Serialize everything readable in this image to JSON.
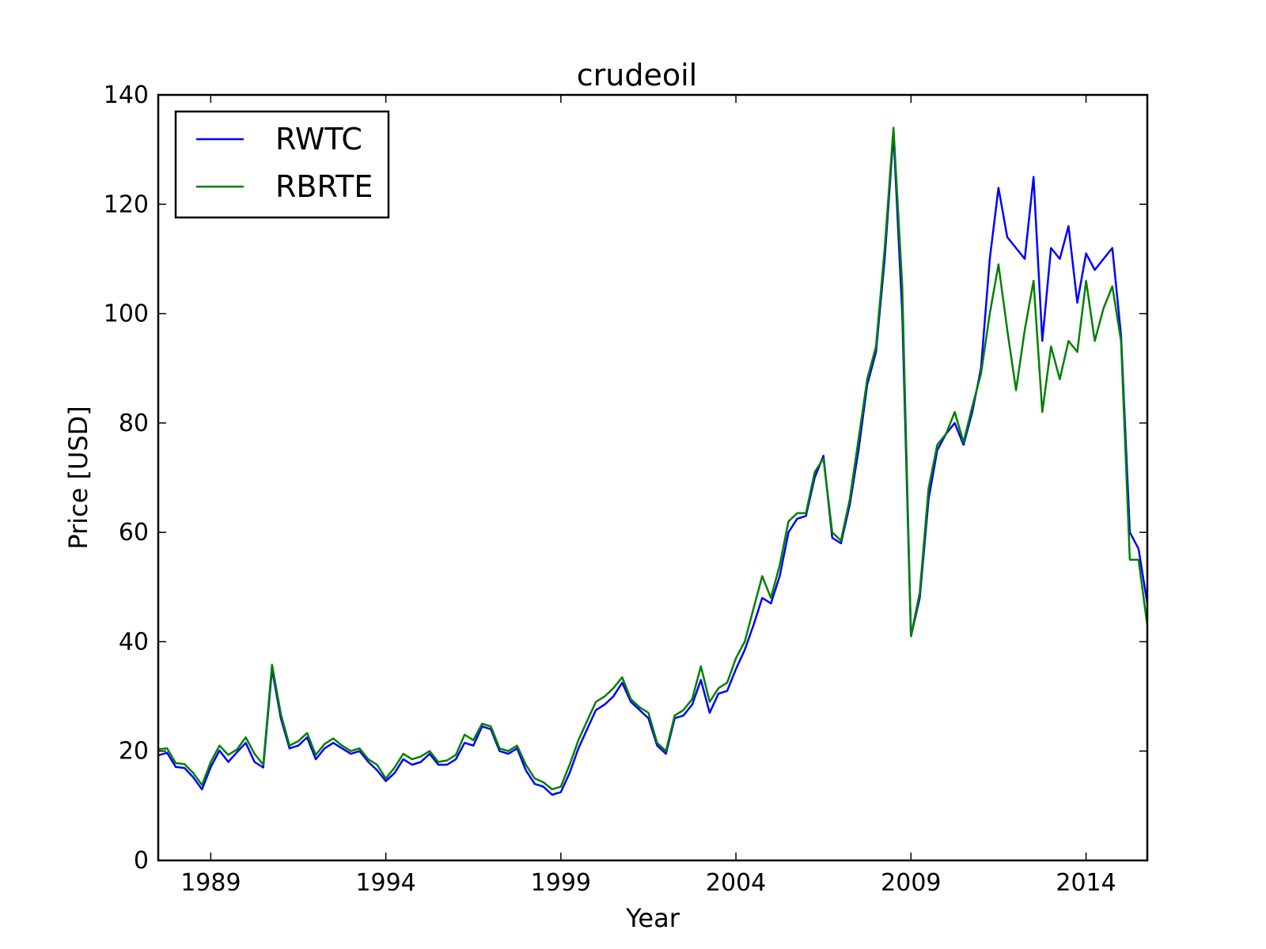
{
  "chart_data": {
    "type": "line",
    "title": "crudeoil",
    "xlabel": "Year",
    "ylabel": "Price [USD]",
    "xlim": [
      1987.5,
      2015.75
    ],
    "ylim": [
      0,
      140
    ],
    "xticks": [
      1989,
      1994,
      1999,
      2004,
      2009,
      2014
    ],
    "yticks": [
      0,
      20,
      40,
      60,
      80,
      100,
      120,
      140
    ],
    "grid": false,
    "legend": "top-left",
    "series": [
      {
        "name": "RWTC",
        "color": "#0000ff",
        "points": [
          [
            1987.5,
            19.2
          ],
          [
            1987.75,
            19.7
          ],
          [
            1988.0,
            17.1
          ],
          [
            1988.25,
            16.9
          ],
          [
            1988.5,
            15.2
          ],
          [
            1988.75,
            13.0
          ],
          [
            1989.0,
            17.1
          ],
          [
            1989.25,
            20.1
          ],
          [
            1989.5,
            18.0
          ],
          [
            1989.75,
            19.8
          ],
          [
            1990.0,
            21.5
          ],
          [
            1990.25,
            18.0
          ],
          [
            1990.5,
            17.0
          ],
          [
            1990.75,
            35.0
          ],
          [
            1991.0,
            26.0
          ],
          [
            1991.25,
            20.5
          ],
          [
            1991.5,
            21.0
          ],
          [
            1991.75,
            22.5
          ],
          [
            1992.0,
            18.5
          ],
          [
            1992.25,
            20.5
          ],
          [
            1992.5,
            21.5
          ],
          [
            1992.75,
            20.5
          ],
          [
            1993.0,
            19.5
          ],
          [
            1993.25,
            20.0
          ],
          [
            1993.5,
            18.0
          ],
          [
            1993.75,
            16.5
          ],
          [
            1994.0,
            14.5
          ],
          [
            1994.25,
            16.0
          ],
          [
            1994.5,
            18.5
          ],
          [
            1994.75,
            17.5
          ],
          [
            1995.0,
            18.0
          ],
          [
            1995.25,
            19.5
          ],
          [
            1995.5,
            17.5
          ],
          [
            1995.75,
            17.5
          ],
          [
            1996.0,
            18.5
          ],
          [
            1996.25,
            21.5
          ],
          [
            1996.5,
            21.0
          ],
          [
            1996.75,
            24.5
          ],
          [
            1997.0,
            24.0
          ],
          [
            1997.25,
            20.0
          ],
          [
            1997.5,
            19.5
          ],
          [
            1997.75,
            20.5
          ],
          [
            1998.0,
            16.5
          ],
          [
            1998.25,
            14.0
          ],
          [
            1998.5,
            13.5
          ],
          [
            1998.75,
            12.0
          ],
          [
            1999.0,
            12.5
          ],
          [
            1999.25,
            16.0
          ],
          [
            1999.5,
            20.5
          ],
          [
            1999.75,
            24.0
          ],
          [
            2000.0,
            27.5
          ],
          [
            2000.25,
            28.5
          ],
          [
            2000.5,
            30.0
          ],
          [
            2000.75,
            32.5
          ],
          [
            2001.0,
            29.0
          ],
          [
            2001.25,
            27.5
          ],
          [
            2001.5,
            26.0
          ],
          [
            2001.75,
            21.0
          ],
          [
            2002.0,
            19.5
          ],
          [
            2002.25,
            26.0
          ],
          [
            2002.5,
            26.5
          ],
          [
            2002.75,
            28.5
          ],
          [
            2003.0,
            33.0
          ],
          [
            2003.25,
            27.0
          ],
          [
            2003.5,
            30.5
          ],
          [
            2003.75,
            31.0
          ],
          [
            2004.0,
            35.0
          ],
          [
            2004.25,
            38.5
          ],
          [
            2004.5,
            43.0
          ],
          [
            2004.75,
            48.0
          ],
          [
            2005.0,
            47.0
          ],
          [
            2005.25,
            52.0
          ],
          [
            2005.5,
            60.0
          ],
          [
            2005.75,
            62.5
          ],
          [
            2006.0,
            63.0
          ],
          [
            2006.25,
            70.0
          ],
          [
            2006.5,
            74.0
          ],
          [
            2006.75,
            59.0
          ],
          [
            2007.0,
            58.0
          ],
          [
            2007.25,
            65.0
          ],
          [
            2007.5,
            75.0
          ],
          [
            2007.75,
            87.0
          ],
          [
            2008.0,
            93.0
          ],
          [
            2008.25,
            110.0
          ],
          [
            2008.5,
            133.0
          ],
          [
            2008.75,
            100.0
          ],
          [
            2009.0,
            41.0
          ],
          [
            2009.25,
            48.0
          ],
          [
            2009.5,
            66.0
          ],
          [
            2009.75,
            75.0
          ],
          [
            2010.0,
            78.0
          ],
          [
            2010.25,
            80.0
          ],
          [
            2010.5,
            76.0
          ],
          [
            2010.75,
            82.0
          ],
          [
            2011.0,
            90.0
          ],
          [
            2011.25,
            110.0
          ],
          [
            2011.5,
            123.0
          ],
          [
            2011.75,
            114.0
          ],
          [
            2012.0,
            112.0
          ],
          [
            2012.25,
            110.0
          ],
          [
            2012.5,
            125.0
          ],
          [
            2012.75,
            95.0
          ],
          [
            2013.0,
            112.0
          ],
          [
            2013.25,
            110.0
          ],
          [
            2013.5,
            116.0
          ],
          [
            2013.75,
            102.0
          ],
          [
            2014.0,
            111.0
          ],
          [
            2014.25,
            108.0
          ],
          [
            2014.5,
            110.0
          ],
          [
            2014.75,
            112.0
          ],
          [
            2015.0,
            96.0
          ],
          [
            2015.25,
            60.0
          ],
          [
            2015.5,
            57.0
          ],
          [
            2015.75,
            47.0
          ]
        ]
      },
      {
        "name": "RBRTE",
        "color": "#008000",
        "points": [
          [
            1987.5,
            20.3
          ],
          [
            1987.75,
            20.5
          ],
          [
            1988.0,
            17.8
          ],
          [
            1988.25,
            17.6
          ],
          [
            1988.5,
            16.0
          ],
          [
            1988.75,
            13.8
          ],
          [
            1989.0,
            18.0
          ],
          [
            1989.25,
            21.0
          ],
          [
            1989.5,
            19.3
          ],
          [
            1989.75,
            20.3
          ],
          [
            1990.0,
            22.5
          ],
          [
            1990.25,
            19.5
          ],
          [
            1990.5,
            17.5
          ],
          [
            1990.75,
            35.8
          ],
          [
            1991.0,
            26.8
          ],
          [
            1991.25,
            21.0
          ],
          [
            1991.5,
            21.8
          ],
          [
            1991.75,
            23.3
          ],
          [
            1992.0,
            19.3
          ],
          [
            1992.25,
            21.3
          ],
          [
            1992.5,
            22.3
          ],
          [
            1992.75,
            21.0
          ],
          [
            1993.0,
            20.0
          ],
          [
            1993.25,
            20.5
          ],
          [
            1993.5,
            18.5
          ],
          [
            1993.75,
            17.5
          ],
          [
            1994.0,
            15.0
          ],
          [
            1994.25,
            17.0
          ],
          [
            1994.5,
            19.5
          ],
          [
            1994.75,
            18.5
          ],
          [
            1995.0,
            19.0
          ],
          [
            1995.25,
            20.0
          ],
          [
            1995.5,
            18.0
          ],
          [
            1995.75,
            18.3
          ],
          [
            1996.0,
            19.3
          ],
          [
            1996.25,
            23.0
          ],
          [
            1996.5,
            22.0
          ],
          [
            1996.75,
            25.0
          ],
          [
            1997.0,
            24.5
          ],
          [
            1997.25,
            20.5
          ],
          [
            1997.5,
            20.0
          ],
          [
            1997.75,
            21.0
          ],
          [
            1998.0,
            17.5
          ],
          [
            1998.25,
            15.0
          ],
          [
            1998.5,
            14.3
          ],
          [
            1998.75,
            13.0
          ],
          [
            1999.0,
            13.5
          ],
          [
            1999.25,
            17.5
          ],
          [
            1999.5,
            22.0
          ],
          [
            1999.75,
            25.5
          ],
          [
            2000.0,
            29.0
          ],
          [
            2000.25,
            30.0
          ],
          [
            2000.5,
            31.5
          ],
          [
            2000.75,
            33.5
          ],
          [
            2001.0,
            29.5
          ],
          [
            2001.25,
            28.0
          ],
          [
            2001.5,
            27.0
          ],
          [
            2001.75,
            21.5
          ],
          [
            2002.0,
            20.0
          ],
          [
            2002.25,
            26.5
          ],
          [
            2002.5,
            27.5
          ],
          [
            2002.75,
            29.5
          ],
          [
            2003.0,
            35.5
          ],
          [
            2003.25,
            29.0
          ],
          [
            2003.5,
            31.5
          ],
          [
            2003.75,
            32.5
          ],
          [
            2004.0,
            37.0
          ],
          [
            2004.25,
            40.0
          ],
          [
            2004.5,
            46.0
          ],
          [
            2004.75,
            52.0
          ],
          [
            2005.0,
            48.0
          ],
          [
            2005.25,
            54.0
          ],
          [
            2005.5,
            62.0
          ],
          [
            2005.75,
            63.5
          ],
          [
            2006.0,
            63.5
          ],
          [
            2006.25,
            71.0
          ],
          [
            2006.5,
            73.5
          ],
          [
            2006.75,
            60.0
          ],
          [
            2007.0,
            58.5
          ],
          [
            2007.25,
            66.0
          ],
          [
            2007.5,
            77.0
          ],
          [
            2007.75,
            88.0
          ],
          [
            2008.0,
            94.0
          ],
          [
            2008.25,
            112.0
          ],
          [
            2008.5,
            134.0
          ],
          [
            2008.75,
            105.0
          ],
          [
            2009.0,
            41.0
          ],
          [
            2009.25,
            49.0
          ],
          [
            2009.5,
            68.0
          ],
          [
            2009.75,
            76.0
          ],
          [
            2010.0,
            78.0
          ],
          [
            2010.25,
            82.0
          ],
          [
            2010.5,
            76.5
          ],
          [
            2010.75,
            83.0
          ],
          [
            2011.0,
            89.0
          ],
          [
            2011.25,
            100.0
          ],
          [
            2011.5,
            109.0
          ],
          [
            2011.75,
            97.0
          ],
          [
            2012.0,
            86.0
          ],
          [
            2012.25,
            97.0
          ],
          [
            2012.5,
            106.0
          ],
          [
            2012.75,
            82.0
          ],
          [
            2013.0,
            94.0
          ],
          [
            2013.25,
            88.0
          ],
          [
            2013.5,
            95.0
          ],
          [
            2013.75,
            93.0
          ],
          [
            2014.0,
            106.0
          ],
          [
            2014.25,
            95.0
          ],
          [
            2014.5,
            101.0
          ],
          [
            2014.75,
            105.0
          ],
          [
            2015.0,
            95.0
          ],
          [
            2015.25,
            55.0
          ],
          [
            2015.5,
            55.0
          ],
          [
            2015.75,
            43.0
          ]
        ]
      }
    ]
  }
}
